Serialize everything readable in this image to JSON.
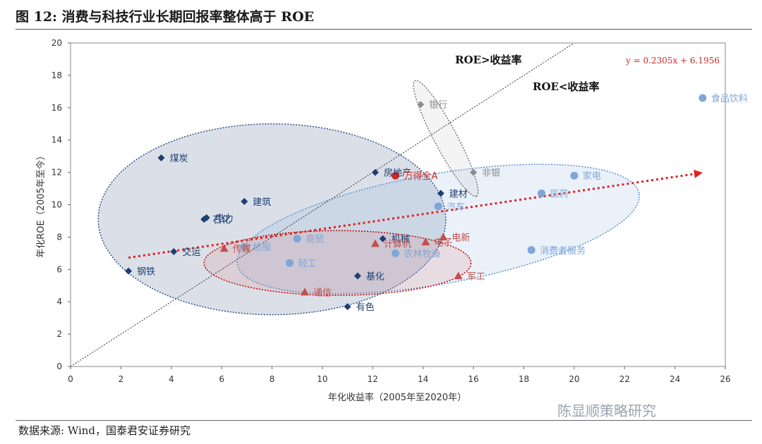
{
  "figure": {
    "title": "图 12:  消费与科技行业长期回报率整体高于 ROE",
    "source": "数据来源:   Wind，国泰君安证券研究",
    "watermark": "陈显顺策略研究"
  },
  "colors": {
    "cycle": "#1f3f73",
    "consumer": "#7fa6d8",
    "tech": "#c0504d",
    "finance": "#8c8c8c",
    "highlight": "#d62728"
  },
  "chart_data": {
    "type": "scatter",
    "xlabel": "年化收益率（2005年至2020年）",
    "ylabel": "年化ROE（2005年至今）",
    "xlim": [
      0,
      26
    ],
    "ylim": [
      0,
      20
    ],
    "xticks": [
      0,
      2,
      4,
      6,
      8,
      10,
      12,
      14,
      16,
      18,
      20,
      22,
      24,
      26
    ],
    "yticks": [
      0,
      2,
      4,
      6,
      8,
      10,
      12,
      14,
      16,
      18,
      20
    ],
    "grid": false,
    "annotations": [
      "ROE>收益率",
      "ROE<收益率"
    ],
    "trendline": {
      "equation": "y = 0.2305x + 6.1956",
      "slope": 0.2305,
      "intercept": 6.1956,
      "x_range": [
        2.3,
        25.1
      ]
    },
    "diagonal": {
      "from": [
        0,
        0
      ],
      "to": [
        20,
        20
      ]
    },
    "points": [
      {
        "label": "煤炭",
        "x": 3.6,
        "y": 12.9,
        "marker": "diamond",
        "color": "#1f3f73"
      },
      {
        "label": "石化",
        "x": 5.3,
        "y": 9.1,
        "marker": "diamond",
        "color": "#1f3f73"
      },
      {
        "label": "电力",
        "x": 5.4,
        "y": 9.2,
        "marker": "diamond",
        "color": "#1f3f73"
      },
      {
        "label": "建筑",
        "x": 6.9,
        "y": 10.2,
        "marker": "diamond",
        "color": "#1f3f73"
      },
      {
        "label": "交运",
        "x": 4.1,
        "y": 7.1,
        "marker": "diamond",
        "color": "#1f3f73"
      },
      {
        "label": "钢铁",
        "x": 2.3,
        "y": 5.9,
        "marker": "diamond",
        "color": "#1f3f73"
      },
      {
        "label": "房地产",
        "x": 12.1,
        "y": 12.0,
        "marker": "diamond",
        "color": "#1f3f73"
      },
      {
        "label": "建材",
        "x": 14.7,
        "y": 10.7,
        "marker": "diamond",
        "color": "#1f3f73"
      },
      {
        "label": "机械",
        "x": 12.4,
        "y": 7.9,
        "marker": "diamond",
        "color": "#1f3f73"
      },
      {
        "label": "基化",
        "x": 11.4,
        "y": 5.6,
        "marker": "diamond",
        "color": "#1f3f73"
      },
      {
        "label": "有色",
        "x": 11.0,
        "y": 3.7,
        "marker": "diamond",
        "color": "#1f3f73"
      },
      {
        "label": "银行",
        "x": 13.9,
        "y": 16.2,
        "marker": "diamond",
        "color": "#8c8c8c"
      },
      {
        "label": "非银",
        "x": 16.0,
        "y": 12.0,
        "marker": "diamond",
        "color": "#8c8c8c"
      },
      {
        "label": "食品饮料",
        "x": 25.1,
        "y": 16.6,
        "marker": "circle",
        "color": "#7fa6d8"
      },
      {
        "label": "家电",
        "x": 20.0,
        "y": 11.8,
        "marker": "circle",
        "color": "#7fa6d8"
      },
      {
        "label": "医药",
        "x": 18.7,
        "y": 10.7,
        "marker": "circle",
        "color": "#7fa6d8"
      },
      {
        "label": "汽车",
        "x": 14.6,
        "y": 9.9,
        "marker": "circle",
        "color": "#7fa6d8"
      },
      {
        "label": "消费者服务",
        "x": 18.3,
        "y": 7.2,
        "marker": "circle",
        "color": "#7fa6d8"
      },
      {
        "label": "农林牧渔",
        "x": 12.9,
        "y": 7.0,
        "marker": "circle",
        "color": "#7fa6d8"
      },
      {
        "label": "商贸",
        "x": 9.0,
        "y": 7.9,
        "marker": "circle",
        "color": "#7fa6d8"
      },
      {
        "label": "轻工",
        "x": 8.7,
        "y": 6.4,
        "marker": "circle",
        "color": "#7fa6d8"
      },
      {
        "label": "纺服",
        "x": 6.9,
        "y": 7.4,
        "marker": "circle",
        "color": "#7fa6d8"
      },
      {
        "label": "万得全A",
        "x": 12.9,
        "y": 11.8,
        "marker": "circle",
        "color": "#d62728"
      },
      {
        "label": "传媒",
        "x": 6.1,
        "y": 7.3,
        "marker": "triangle",
        "color": "#c0504d"
      },
      {
        "label": "计算机",
        "x": 12.1,
        "y": 7.6,
        "marker": "triangle",
        "color": "#c0504d"
      },
      {
        "label": "电子",
        "x": 14.1,
        "y": 7.7,
        "marker": "triangle",
        "color": "#c0504d"
      },
      {
        "label": "电新",
        "x": 14.8,
        "y": 8.0,
        "marker": "triangle",
        "color": "#c0504d"
      },
      {
        "label": "军工",
        "x": 15.4,
        "y": 5.6,
        "marker": "triangle",
        "color": "#c0504d"
      },
      {
        "label": "通信",
        "x": 9.3,
        "y": 4.6,
        "marker": "triangle",
        "color": "#c0504d"
      }
    ],
    "groups": [
      {
        "cx": 8.0,
        "cy": 9.1,
        "rx": 6.9,
        "ry": 5.9,
        "rotate": 0,
        "fill": "#1f3f73",
        "stroke": "#2b4f8a"
      },
      {
        "cx": 14.6,
        "cy": 8.5,
        "rx": 8.1,
        "ry": 3.4,
        "rotate": -10,
        "fill": "#7fa6d8",
        "stroke": "#5b8fd6"
      },
      {
        "cx": 10.6,
        "cy": 6.4,
        "rx": 5.3,
        "ry": 2.0,
        "rotate": 0,
        "fill": "#e07070",
        "stroke": "#c00000"
      },
      {
        "cx": 14.9,
        "cy": 14.1,
        "rx": 2.6,
        "ry": 0.7,
        "rotate": 62,
        "fill": "#bbbbbb",
        "stroke": "#777777"
      }
    ]
  }
}
